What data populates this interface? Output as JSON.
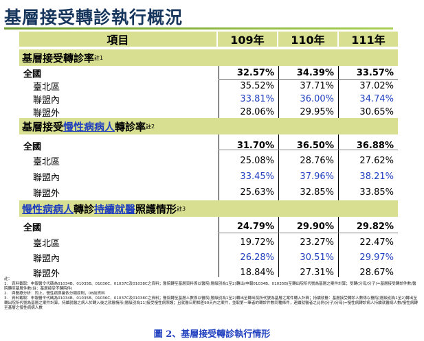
{
  "title": "基層接受轉診執行概況",
  "header": {
    "item": "項目",
    "y1": "109年",
    "y2": "110年",
    "y3": "111年"
  },
  "sections": [
    {
      "title_parts": [
        "基層接受轉診率"
      ],
      "highlights": [],
      "note": "註1",
      "rows": [
        {
          "label": "全國",
          "v": [
            "32.57%",
            "34.39%",
            "33.57%"
          ]
        },
        {
          "label": "臺北區",
          "v": [
            "35.52%",
            "37.71%",
            "37.02%"
          ]
        },
        {
          "label": "聯盟內",
          "v": [
            "33.81%",
            "36.00%",
            "34.74%"
          ]
        },
        {
          "label": "聯盟外",
          "v": [
            "28.06%",
            "29.95%",
            "30.65%"
          ]
        }
      ]
    },
    {
      "title_parts": [
        "基層接受",
        "慢性病病人",
        "轉診率"
      ],
      "note": "註2",
      "rows": [
        {
          "label": "全國",
          "v": [
            "31.70%",
            "36.50%",
            "36.88%"
          ]
        },
        {
          "label": "臺北區",
          "v": [
            "25.08%",
            "28.76%",
            "27.62%"
          ]
        },
        {
          "label": "聯盟內",
          "v": [
            "33.45%",
            "37.96%",
            "38.21%"
          ]
        },
        {
          "label": "聯盟外",
          "v": [
            "25.63%",
            "32.85%",
            "33.85%"
          ]
        }
      ]
    },
    {
      "title_parts": [
        "慢性病病人",
        "轉診",
        "持續就醫",
        "照護情形"
      ],
      "note": "註3",
      "rows": [
        {
          "label": "全國",
          "v": [
            "24.79%",
            "29.90%",
            "29.82%"
          ]
        },
        {
          "label": "臺北區",
          "v": [
            "19.72%",
            "23.27%",
            "22.47%"
          ]
        },
        {
          "label": "聯盟內",
          "v": [
            "26.28%",
            "30.51%",
            "29.97%"
          ]
        },
        {
          "label": "聯盟外",
          "v": [
            "18.84%",
            "27.31%",
            "28.67%"
          ]
        }
      ]
    }
  ],
  "notes": {
    "head": "註：",
    "n1": "1.　資料截取：申報醫令代碼為01034B、01035B、01036C、01037C及01038C之資料；醫院轉至基層資料係以醫院(層級別為1至2)轉出(申報01034B、01035B)至轉出院所代號為基層之案件計算；受轉(分母/分子)=基層接受轉診件數/醫院轉至基層件數(註：基層接受不轉院件)",
    "n2": "2.　與醫療分析：同上，慢性病係屬依分類原則，08前資料",
    "n3": "3.　資料截取：申報醫令代碼為01034B、01035B、01036C、01037C及01038C之資料；醫院轉至基層人數係以醫院(層級別為1至2)轉出至轉出院所代號為基層之案件轉入計算；持續就醫：基層接受轉診人數係以醫院(層級別為1至2)轉出至轉出院所代號為基層之案件計算，持續就醫之病人於轉入後之就醫情形(層級別為11)接受慢性病照護；且就醫日期相差90天內之案件，並取第一筆者的轉診件數同種條件，連續就醫者之比例(分子/分母)=慢性病轉診病人持續就醫病人數/慢性病轉至基層之慢性病病人數"
  },
  "caption": "圖 2、基層接受轉診執行情形"
}
